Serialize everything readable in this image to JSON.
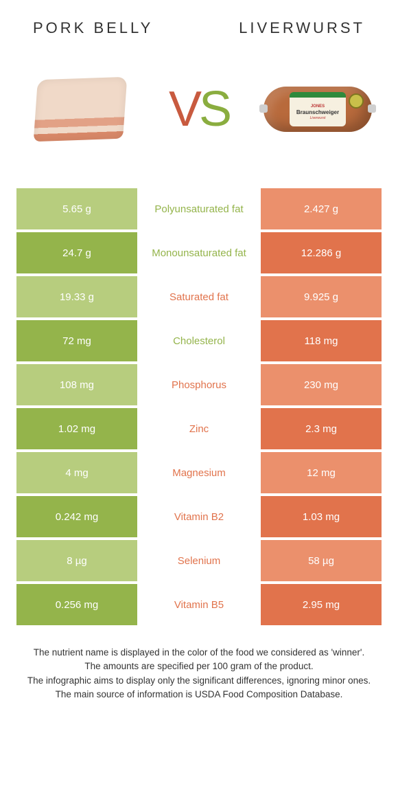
{
  "colors": {
    "left_pale": "#b7cd7e",
    "left_dark": "#94b44b",
    "right_pale": "#eb906c",
    "right_dark": "#e1734c",
    "mid_bg": "#ffffff",
    "label_left_winner": "#94b44b",
    "label_right_winner": "#e1734c"
  },
  "header": {
    "left_title": "Pork belly",
    "right_title": "Liverwurst",
    "vs_v": "V",
    "vs_s": "S"
  },
  "liverwurst_label": {
    "brand": "JONES",
    "name": "Braunschweiger",
    "sub": "Liverwurst"
  },
  "rows": [
    {
      "left": "5.65 g",
      "label": "Polyunsaturated fat",
      "right": "2.427 g",
      "winner": "left"
    },
    {
      "left": "24.7 g",
      "label": "Monounsaturated fat",
      "right": "12.286 g",
      "winner": "left"
    },
    {
      "left": "19.33 g",
      "label": "Saturated fat",
      "right": "9.925 g",
      "winner": "right"
    },
    {
      "left": "72 mg",
      "label": "Cholesterol",
      "right": "118 mg",
      "winner": "left"
    },
    {
      "left": "108 mg",
      "label": "Phosphorus",
      "right": "230 mg",
      "winner": "right"
    },
    {
      "left": "1.02 mg",
      "label": "Zinc",
      "right": "2.3 mg",
      "winner": "right"
    },
    {
      "left": "4 mg",
      "label": "Magnesium",
      "right": "12 mg",
      "winner": "right"
    },
    {
      "left": "0.242 mg",
      "label": "Vitamin B2",
      "right": "1.03 mg",
      "winner": "right"
    },
    {
      "left": "8 µg",
      "label": "Selenium",
      "right": "58 µg",
      "winner": "right"
    },
    {
      "left": "0.256 mg",
      "label": "Vitamin B5",
      "right": "2.95 mg",
      "winner": "right"
    }
  ],
  "footer": {
    "line1": "The nutrient name is displayed in the color of the food we considered as 'winner'.",
    "line2": "The amounts are specified per 100 gram of the product.",
    "line3": "The infographic aims to display only the significant differences, ignoring minor ones.",
    "line4": "The main source of information is USDA Food Composition Database."
  }
}
